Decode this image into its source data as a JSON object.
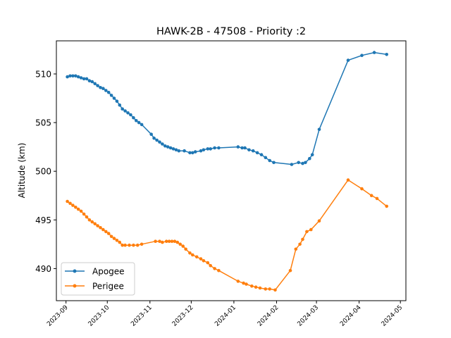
{
  "chart_data": {
    "type": "line",
    "title": "HAWK-2B - 47508 - Priority :2",
    "xlabel": "",
    "ylabel": "Altitude (km)",
    "xlim": [
      "2023-08-25",
      "2024-05-05"
    ],
    "ylim": [
      486.7,
      513.4
    ],
    "x_ticks": [
      "2023-09",
      "2023-10",
      "2023-11",
      "2023-12",
      "2024-01",
      "2024-02",
      "2024-03",
      "2024-04",
      "2024-05"
    ],
    "y_ticks": [
      490,
      495,
      500,
      505,
      510
    ],
    "grid": false,
    "legend_position": "lower-left",
    "series": [
      {
        "name": "Apogee",
        "color": "#1f77b4",
        "marker": "circle",
        "points": [
          [
            "2023-09-02",
            509.7
          ],
          [
            "2023-09-04",
            509.8
          ],
          [
            "2023-09-06",
            509.8
          ],
          [
            "2023-09-08",
            509.8
          ],
          [
            "2023-09-10",
            509.7
          ],
          [
            "2023-09-12",
            509.6
          ],
          [
            "2023-09-14",
            509.5
          ],
          [
            "2023-09-16",
            509.5
          ],
          [
            "2023-09-18",
            509.3
          ],
          [
            "2023-09-20",
            509.2
          ],
          [
            "2023-09-22",
            509.0
          ],
          [
            "2023-09-24",
            508.8
          ],
          [
            "2023-09-26",
            508.6
          ],
          [
            "2023-09-28",
            508.5
          ],
          [
            "2023-09-30",
            508.3
          ],
          [
            "2023-10-02",
            508.1
          ],
          [
            "2023-10-04",
            507.8
          ],
          [
            "2023-10-06",
            507.5
          ],
          [
            "2023-10-08",
            507.2
          ],
          [
            "2023-10-10",
            506.8
          ],
          [
            "2023-10-12",
            506.4
          ],
          [
            "2023-10-14",
            506.2
          ],
          [
            "2023-10-16",
            506.0
          ],
          [
            "2023-10-18",
            505.8
          ],
          [
            "2023-10-20",
            505.5
          ],
          [
            "2023-10-22",
            505.2
          ],
          [
            "2023-10-24",
            505.0
          ],
          [
            "2023-10-26",
            504.8
          ],
          [
            "2023-11-02",
            503.8
          ],
          [
            "2023-11-04",
            503.4
          ],
          [
            "2023-11-06",
            503.2
          ],
          [
            "2023-11-08",
            503.0
          ],
          [
            "2023-11-10",
            502.8
          ],
          [
            "2023-11-12",
            502.6
          ],
          [
            "2023-11-14",
            502.5
          ],
          [
            "2023-11-16",
            502.4
          ],
          [
            "2023-11-18",
            502.3
          ],
          [
            "2023-11-20",
            502.2
          ],
          [
            "2023-11-22",
            502.1
          ],
          [
            "2023-11-26",
            502.1
          ],
          [
            "2023-11-30",
            501.9
          ],
          [
            "2023-12-02",
            501.9
          ],
          [
            "2023-12-04",
            502.0
          ],
          [
            "2023-12-08",
            502.1
          ],
          [
            "2023-12-10",
            502.2
          ],
          [
            "2023-12-13",
            502.3
          ],
          [
            "2023-12-15",
            502.3
          ],
          [
            "2023-12-18",
            502.4
          ],
          [
            "2023-12-21",
            502.4
          ],
          [
            "2024-01-04",
            502.5
          ],
          [
            "2024-01-07",
            502.4
          ],
          [
            "2024-01-09",
            502.4
          ],
          [
            "2024-01-12",
            502.2
          ],
          [
            "2024-01-15",
            502.1
          ],
          [
            "2024-01-18",
            501.9
          ],
          [
            "2024-01-21",
            501.7
          ],
          [
            "2024-01-24",
            501.4
          ],
          [
            "2024-01-27",
            501.1
          ],
          [
            "2024-01-30",
            500.9
          ],
          [
            "2024-02-12",
            500.7
          ],
          [
            "2024-02-17",
            500.9
          ],
          [
            "2024-02-20",
            500.8
          ],
          [
            "2024-02-22",
            500.9
          ],
          [
            "2024-02-25",
            501.3
          ],
          [
            "2024-02-27",
            501.7
          ],
          [
            "2024-03-03",
            504.3
          ],
          [
            "2024-03-24",
            511.4
          ],
          [
            "2024-04-03",
            511.9
          ],
          [
            "2024-04-12",
            512.2
          ],
          [
            "2024-04-21",
            512.0
          ]
        ]
      },
      {
        "name": "Perigee",
        "color": "#ff7f0e",
        "marker": "circle",
        "points": [
          [
            "2023-09-02",
            496.9
          ],
          [
            "2023-09-04",
            496.7
          ],
          [
            "2023-09-06",
            496.5
          ],
          [
            "2023-09-08",
            496.3
          ],
          [
            "2023-09-10",
            496.1
          ],
          [
            "2023-09-12",
            495.9
          ],
          [
            "2023-09-14",
            495.6
          ],
          [
            "2023-09-16",
            495.3
          ],
          [
            "2023-09-18",
            495.0
          ],
          [
            "2023-09-20",
            494.8
          ],
          [
            "2023-09-22",
            494.6
          ],
          [
            "2023-09-24",
            494.4
          ],
          [
            "2023-09-26",
            494.2
          ],
          [
            "2023-09-28",
            494.0
          ],
          [
            "2023-09-30",
            493.8
          ],
          [
            "2023-10-02",
            493.6
          ],
          [
            "2023-10-04",
            493.3
          ],
          [
            "2023-10-06",
            493.1
          ],
          [
            "2023-10-08",
            492.9
          ],
          [
            "2023-10-10",
            492.7
          ],
          [
            "2023-10-12",
            492.4
          ],
          [
            "2023-10-14",
            492.4
          ],
          [
            "2023-10-17",
            492.4
          ],
          [
            "2023-10-20",
            492.4
          ],
          [
            "2023-10-23",
            492.4
          ],
          [
            "2023-10-26",
            492.5
          ],
          [
            "2023-11-05",
            492.8
          ],
          [
            "2023-11-08",
            492.8
          ],
          [
            "2023-11-10",
            492.7
          ],
          [
            "2023-11-13",
            492.8
          ],
          [
            "2023-11-15",
            492.8
          ],
          [
            "2023-11-17",
            492.8
          ],
          [
            "2023-11-19",
            492.8
          ],
          [
            "2023-11-21",
            492.7
          ],
          [
            "2023-11-23",
            492.5
          ],
          [
            "2023-11-25",
            492.3
          ],
          [
            "2023-11-27",
            492.0
          ],
          [
            "2023-11-30",
            491.6
          ],
          [
            "2023-12-02",
            491.4
          ],
          [
            "2023-12-05",
            491.2
          ],
          [
            "2023-12-08",
            491.0
          ],
          [
            "2023-12-10",
            490.8
          ],
          [
            "2023-12-13",
            490.6
          ],
          [
            "2023-12-15",
            490.3
          ],
          [
            "2023-12-18",
            490.0
          ],
          [
            "2023-12-21",
            489.8
          ],
          [
            "2024-01-04",
            488.7
          ],
          [
            "2024-01-08",
            488.5
          ],
          [
            "2024-01-10",
            488.4
          ],
          [
            "2024-01-14",
            488.2
          ],
          [
            "2024-01-17",
            488.1
          ],
          [
            "2024-01-20",
            488.0
          ],
          [
            "2024-01-24",
            487.9
          ],
          [
            "2024-01-27",
            487.9
          ],
          [
            "2024-01-31",
            487.8
          ],
          [
            "2024-02-11",
            489.8
          ],
          [
            "2024-02-15",
            492.0
          ],
          [
            "2024-02-18",
            492.5
          ],
          [
            "2024-02-20",
            493.0
          ],
          [
            "2024-02-23",
            493.8
          ],
          [
            "2024-02-26",
            494.0
          ],
          [
            "2024-03-03",
            494.9
          ],
          [
            "2024-03-24",
            499.1
          ],
          [
            "2024-04-03",
            498.2
          ],
          [
            "2024-04-10",
            497.5
          ],
          [
            "2024-04-14",
            497.2
          ],
          [
            "2024-04-21",
            496.4
          ]
        ]
      }
    ]
  }
}
